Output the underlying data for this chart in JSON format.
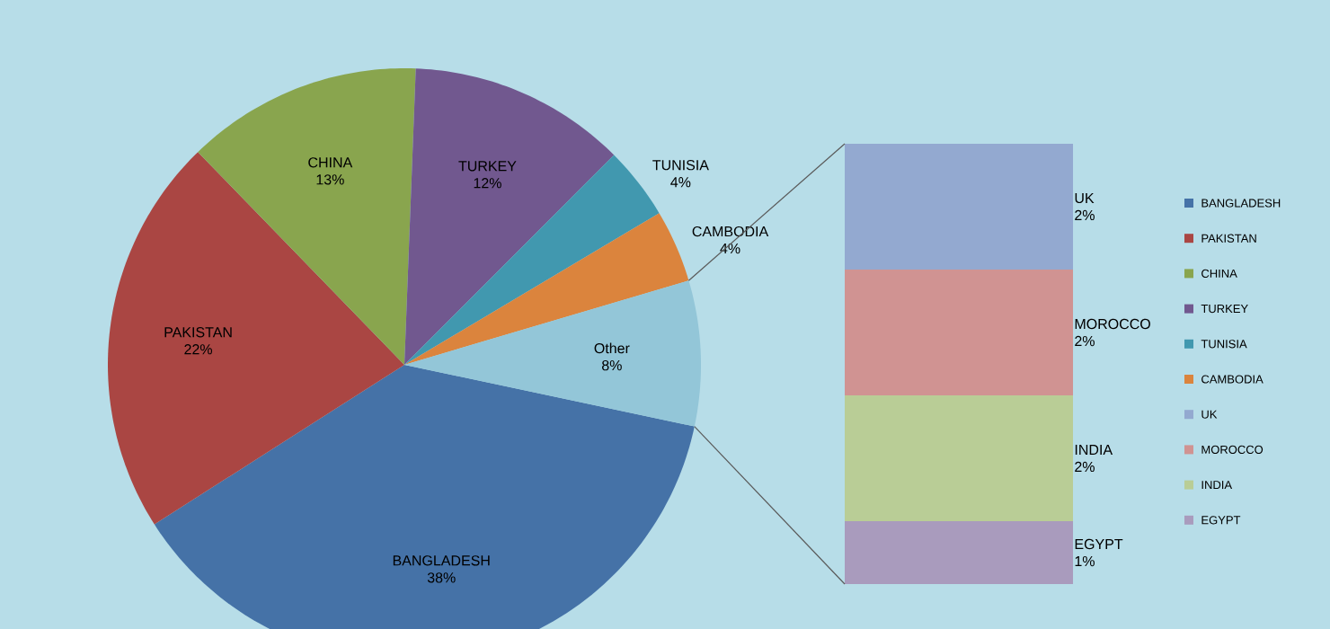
{
  "chart_data": [
    {
      "type": "pie",
      "categories": [
        "BANGLADESH",
        "PAKISTAN",
        "CHINA",
        "TURKEY",
        "TUNISIA",
        "CAMBODIA",
        "Other"
      ],
      "values": [
        38,
        22,
        13,
        12,
        4,
        4,
        8
      ],
      "value_labels": [
        "38%",
        "22%",
        "13%",
        "12%",
        "4%",
        "4%",
        "8%"
      ],
      "colors": [
        "#4572a7",
        "#aa4643",
        "#89a54e",
        "#71588f",
        "#4198af",
        "#db843d",
        "#93c6d8"
      ],
      "legend": "right"
    },
    {
      "type": "bar",
      "stacked": true,
      "categories": [
        null
      ],
      "legend": "right",
      "series": [
        {
          "name": "EGYPT",
          "color": "#a99bbd",
          "values": [
            1
          ],
          "value_labels": [
            "1%"
          ]
        },
        {
          "name": "INDIA",
          "color": "#b9cd96",
          "values": [
            2
          ],
          "value_labels": [
            "2%"
          ]
        },
        {
          "name": "MOROCCO",
          "color": "#d09392",
          "values": [
            2
          ],
          "value_labels": [
            "2%"
          ]
        },
        {
          "name": "UK",
          "color": "#93a9d0",
          "values": [
            2
          ],
          "value_labels": [
            "2%"
          ]
        }
      ]
    }
  ]
}
